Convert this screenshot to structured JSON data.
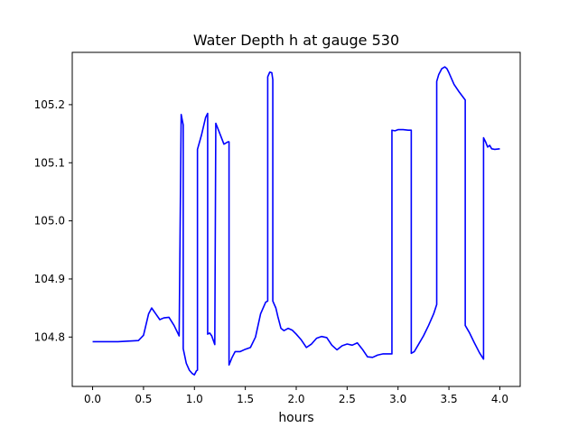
{
  "chart_data": {
    "type": "line",
    "title": "Water Depth h at gauge 530",
    "xlabel": "hours",
    "ylabel": "",
    "xlim": [
      -0.2,
      4.2
    ],
    "ylim": [
      104.715,
      105.29
    ],
    "xticks": [
      0.0,
      0.5,
      1.0,
      1.5,
      2.0,
      2.5,
      3.0,
      3.5,
      4.0
    ],
    "xtick_labels": [
      "0.0",
      "0.5",
      "1.0",
      "1.5",
      "2.0",
      "2.5",
      "3.0",
      "3.5",
      "4.0"
    ],
    "yticks": [
      104.8,
      104.9,
      105.0,
      105.1,
      105.2
    ],
    "ytick_labels": [
      "104.8",
      "104.9",
      "105.0",
      "105.1",
      "105.2"
    ],
    "grid": false,
    "series": [
      {
        "color": "#0000ff",
        "x": [
          0.0,
          0.25,
          0.45,
          0.5,
          0.55,
          0.58,
          0.62,
          0.66,
          0.7,
          0.75,
          0.8,
          0.85,
          0.87,
          0.87,
          0.89,
          0.89,
          0.92,
          0.95,
          0.98,
          1.0,
          1.02,
          1.03,
          1.03,
          1.07,
          1.11,
          1.13,
          1.13,
          1.15,
          1.17,
          1.2,
          1.21,
          1.21,
          1.25,
          1.29,
          1.33,
          1.34,
          1.34,
          1.37,
          1.4,
          1.45,
          1.5,
          1.55,
          1.6,
          1.65,
          1.7,
          1.72,
          1.72,
          1.74,
          1.76,
          1.77,
          1.77,
          1.8,
          1.82,
          1.85,
          1.88,
          1.92,
          1.96,
          2.0,
          2.05,
          2.1,
          2.15,
          2.2,
          2.25,
          2.3,
          2.35,
          2.4,
          2.45,
          2.5,
          2.55,
          2.6,
          2.65,
          2.7,
          2.75,
          2.8,
          2.85,
          2.9,
          2.94,
          2.94,
          2.97,
          3.0,
          3.05,
          3.1,
          3.13,
          3.13,
          3.16,
          3.2,
          3.25,
          3.3,
          3.35,
          3.38,
          3.38,
          3.4,
          3.43,
          3.46,
          3.48,
          3.5,
          3.55,
          3.6,
          3.66,
          3.66,
          3.7,
          3.75,
          3.8,
          3.84,
          3.84,
          3.86,
          3.88,
          3.9,
          3.92,
          3.95,
          4.0
        ],
        "y": [
          104.792,
          104.792,
          104.794,
          104.803,
          104.84,
          104.85,
          104.84,
          104.83,
          104.833,
          104.834,
          104.82,
          104.802,
          105.183,
          105.183,
          105.165,
          104.78,
          104.755,
          104.743,
          104.737,
          104.735,
          104.742,
          104.743,
          105.123,
          105.148,
          105.178,
          105.185,
          104.805,
          104.807,
          104.802,
          104.787,
          105.168,
          105.168,
          105.15,
          105.132,
          105.136,
          105.136,
          104.752,
          104.765,
          104.775,
          104.775,
          104.779,
          104.782,
          104.8,
          104.84,
          104.86,
          104.862,
          105.248,
          105.256,
          105.255,
          105.243,
          104.862,
          104.85,
          104.835,
          104.815,
          104.811,
          104.815,
          104.812,
          104.805,
          104.795,
          104.782,
          104.788,
          104.798,
          104.801,
          104.799,
          104.786,
          104.778,
          104.785,
          104.788,
          104.786,
          104.79,
          104.779,
          104.766,
          104.765,
          104.769,
          104.771,
          104.771,
          104.771,
          105.156,
          105.155,
          105.157,
          105.157,
          105.156,
          105.156,
          104.772,
          104.775,
          104.787,
          104.802,
          104.82,
          104.84,
          104.856,
          105.24,
          105.252,
          105.262,
          105.265,
          105.262,
          105.255,
          105.235,
          105.222,
          105.208,
          104.82,
          104.808,
          104.79,
          104.773,
          104.762,
          105.143,
          105.136,
          105.127,
          105.13,
          105.124,
          105.123,
          105.124
        ]
      }
    ]
  }
}
